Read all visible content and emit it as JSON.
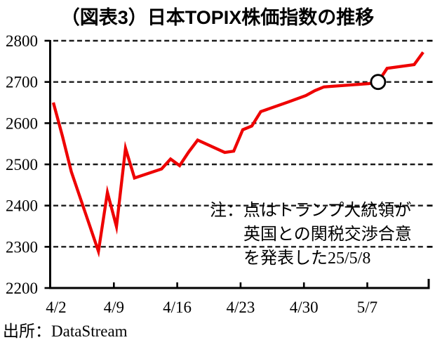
{
  "chart_data": {
    "type": "line",
    "title": "（図表3）日本TOPIX株価指数の推移",
    "xlabel": "",
    "ylabel": "",
    "ylim": [
      2200,
      2800
    ],
    "ytick_step": 100,
    "y_ticks": [
      2800,
      2700,
      2600,
      2500,
      2400,
      2300,
      2200
    ],
    "x_ticks": [
      "4/2",
      "4/9",
      "4/16",
      "4/23",
      "4/30",
      "5/7"
    ],
    "grid": "horizontal-dashed",
    "legend": "none",
    "line_color": "#ee0000",
    "series": [
      {
        "name": "日本TOPIX株価指数",
        "points": [
          [
            "4/2",
            2650
          ],
          [
            "4/3",
            2569
          ],
          [
            "4/4",
            2482
          ],
          [
            "4/7",
            2289
          ],
          [
            "4/8",
            2432
          ],
          [
            "4/9",
            2349
          ],
          [
            "4/10",
            2539
          ],
          [
            "4/11",
            2467
          ],
          [
            "4/14",
            2489
          ],
          [
            "4/15",
            2513
          ],
          [
            "4/16",
            2497
          ],
          [
            "4/17",
            2530
          ],
          [
            "4/18",
            2559
          ],
          [
            "4/21",
            2529
          ],
          [
            "4/22",
            2532
          ],
          [
            "4/23",
            2584
          ],
          [
            "4/24",
            2593
          ],
          [
            "4/25",
            2628
          ],
          [
            "4/28",
            2651
          ],
          [
            "4/30",
            2667
          ],
          [
            "5/1",
            2679
          ],
          [
            "5/2",
            2688
          ],
          [
            "5/7",
            2696
          ],
          [
            "5/8",
            2700
          ],
          [
            "5/9",
            2733
          ],
          [
            "5/12",
            2742
          ],
          [
            "5/13",
            2772
          ]
        ]
      }
    ],
    "marker": {
      "date": "5/8",
      "value": 2700
    },
    "annotation": {
      "line1": "注：点はトランプ大統領が",
      "line2": "英国との関税交渉合意",
      "line3": "を発表した25/5/8"
    },
    "source": "出所：DataStream"
  }
}
